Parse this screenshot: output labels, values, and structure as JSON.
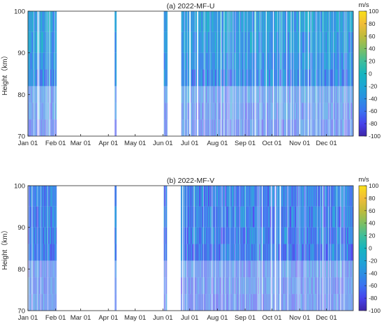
{
  "chart_data": [
    {
      "type": "heatmap",
      "title": "(a) 2022-MF-U",
      "ylabel": "Height（km）",
      "xlabel": "",
      "x_ticks": [
        "Jan 01",
        "Feb 01",
        "Mar 01",
        "Apr 01",
        "May 01",
        "Jun 01",
        "Jul 01",
        "Aug 01",
        "Sep 01",
        "Oct 01",
        "Nov 01",
        "Dec 01"
      ],
      "x_range_days": [
        1,
        365
      ],
      "y_ticks": [
        70,
        80,
        90,
        100
      ],
      "ylim": [
        70,
        100
      ],
      "colorbar": {
        "label": "m/s",
        "ticks": [
          100,
          80,
          60,
          40,
          20,
          0,
          -20,
          -40,
          -60,
          -80,
          -100
        ],
        "range": [
          -100,
          100
        ],
        "colormap": "parula"
      },
      "data_coverage_days": [
        [
          1,
          33
        ],
        [
          98,
          100
        ],
        [
          153,
          157
        ],
        [
          172,
          365
        ]
      ],
      "dominant_values_ms": {
        "high_altitude": -30,
        "low_altitude": -60
      }
    },
    {
      "type": "heatmap",
      "title": "(b) 2022-MF-V",
      "ylabel": "Height（km）",
      "xlabel": "",
      "x_ticks": [
        "Jan 01",
        "Feb 01",
        "Mar 01",
        "Apr 01",
        "May 01",
        "Jun 01",
        "Jul 01",
        "Aug 01",
        "Sep 01",
        "Oct 01",
        "Nov 01",
        "Dec 01"
      ],
      "x_range_days": [
        1,
        365
      ],
      "y_ticks": [
        70,
        80,
        90,
        100
      ],
      "ylim": [
        70,
        100
      ],
      "colorbar": {
        "label": "m/s",
        "ticks": [
          100,
          80,
          60,
          40,
          20,
          0,
          -20,
          -40,
          -60,
          -80,
          -100
        ],
        "range": [
          -100,
          100
        ],
        "colormap": "parula"
      },
      "data_coverage_days": [
        [
          1,
          33
        ],
        [
          98,
          100
        ],
        [
          153,
          157
        ],
        [
          172,
          365
        ]
      ],
      "dominant_values_ms": {
        "high_altitude": -50,
        "low_altitude": -60
      }
    }
  ],
  "palette": [
    "#3e26a8",
    "#4743ec",
    "#3b72f1",
    "#2b8fe2",
    "#1da6d4",
    "#15b5bf",
    "#3fbe9a",
    "#7ebf62",
    "#bfbb3b",
    "#f1bc39",
    "#f9e017"
  ]
}
